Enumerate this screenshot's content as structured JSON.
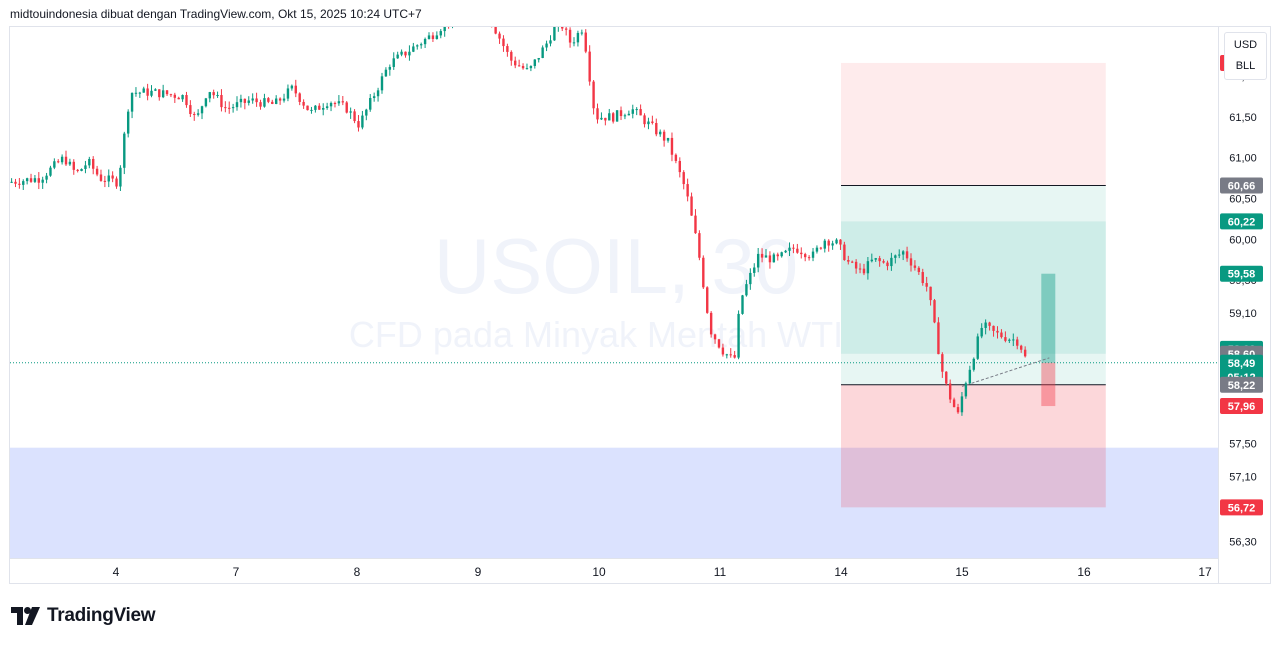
{
  "header": {
    "text": "midtouindonesia dibuat dengan TradingView.com, Okt 15, 2025 10:24 UTC+7"
  },
  "watermark": {
    "symbol": "USOIL, 30",
    "description": "CFD pada Minyak Mentah WTI"
  },
  "currency_box": {
    "currency": "USD",
    "unit": "BLL"
  },
  "logo": {
    "text": "TradingView"
  },
  "colors": {
    "up": "#089981",
    "down": "#f23645",
    "grey": "#787b86",
    "stop_zone": "#f23645",
    "target_zone": "#22ab94",
    "support_zone": "#5b7cfa"
  },
  "chart_data": {
    "type": "candlestick",
    "symbol": "USOIL",
    "timeframe": "30",
    "ylim": [
      56.1,
      62.6
    ],
    "y_ticks": [
      "62,00",
      "61,50",
      "61,00",
      "60,50",
      "60,00",
      "59,50",
      "59,10",
      "58,60",
      "58,20",
      "57,50",
      "57,10",
      "56,30"
    ],
    "y_tick_values": [
      62.0,
      61.5,
      61.0,
      60.5,
      60.0,
      59.5,
      59.1,
      58.6,
      58.2,
      57.5,
      57.1,
      56.3
    ],
    "x_ticks": [
      "4",
      "7",
      "8",
      "9",
      "10",
      "11",
      "14",
      "15",
      "16",
      "17"
    ],
    "x_tick_days": [
      0,
      1,
      2,
      3,
      4,
      5,
      6,
      7,
      8,
      9
    ],
    "xlim_days": [
      -0.87,
      9.0
    ],
    "session_path": [
      [
        -0.87,
        60.7
      ],
      [
        -0.6,
        60.75
      ],
      [
        -0.4,
        61.0
      ],
      [
        -0.3,
        60.8
      ],
      [
        -0.2,
        60.95
      ],
      [
        -0.1,
        60.75
      ],
      [
        0.05,
        60.7
      ],
      [
        0.15,
        61.8
      ],
      [
        0.35,
        61.8
      ],
      [
        0.6,
        61.75
      ],
      [
        0.7,
        61.45
      ],
      [
        0.8,
        61.85
      ],
      [
        0.95,
        61.6
      ],
      [
        1.15,
        61.7
      ],
      [
        1.35,
        61.65
      ],
      [
        1.5,
        61.85
      ],
      [
        1.65,
        61.55
      ],
      [
        1.8,
        61.7
      ],
      [
        1.95,
        61.6
      ],
      [
        2.05,
        61.4
      ],
      [
        2.15,
        61.7
      ],
      [
        2.3,
        62.15
      ],
      [
        2.5,
        62.35
      ],
      [
        2.65,
        62.5
      ],
      [
        2.8,
        62.7
      ],
      [
        2.95,
        62.8
      ],
      [
        3.05,
        62.95
      ],
      [
        3.2,
        62.5
      ],
      [
        3.3,
        62.2
      ],
      [
        3.45,
        62.05
      ],
      [
        3.6,
        62.4
      ],
      [
        3.7,
        62.7
      ],
      [
        3.8,
        62.4
      ],
      [
        3.9,
        62.6
      ],
      [
        4.0,
        61.5
      ],
      [
        4.15,
        61.5
      ],
      [
        4.3,
        61.6
      ],
      [
        4.45,
        61.4
      ],
      [
        4.6,
        61.2
      ],
      [
        4.75,
        60.6
      ],
      [
        4.85,
        59.9
      ],
      [
        4.95,
        58.9
      ],
      [
        5.05,
        58.65
      ],
      [
        5.15,
        58.5
      ],
      [
        5.2,
        59.25
      ],
      [
        5.35,
        59.8
      ],
      [
        5.5,
        59.75
      ],
      [
        5.65,
        59.9
      ],
      [
        5.8,
        59.8
      ],
      [
        5.9,
        60.0
      ],
      [
        6.0,
        59.95
      ],
      [
        6.1,
        59.7
      ],
      [
        6.2,
        59.6
      ],
      [
        6.3,
        59.75
      ],
      [
        6.4,
        59.7
      ],
      [
        6.55,
        59.85
      ],
      [
        6.65,
        59.65
      ],
      [
        6.75,
        59.4
      ],
      [
        6.82,
        58.8
      ],
      [
        6.88,
        58.3
      ],
      [
        6.95,
        58.0
      ],
      [
        7.0,
        57.85
      ],
      [
        7.05,
        58.2
      ],
      [
        7.15,
        58.7
      ],
      [
        7.2,
        58.95
      ],
      [
        7.3,
        58.85
      ],
      [
        7.4,
        58.8
      ],
      [
        7.5,
        58.75
      ],
      [
        7.55,
        58.55
      ]
    ],
    "sample_candle_count": 260,
    "last_price": 58.49,
    "countdown": "05:12",
    "horizontal_lines": [
      {
        "price": 60.66,
        "color": "grey"
      },
      {
        "price": 58.22,
        "color": "grey"
      }
    ],
    "position_tool": {
      "start_day": 6.0,
      "end_day": 8.18,
      "stop_price": 62.16,
      "entry_price": 60.66,
      "target_price": 58.22,
      "target_far_price": 56.72,
      "zone_split_prices": [
        60.22,
        58.6
      ]
    },
    "support_zone": {
      "from_price": 56.1,
      "to_price": 57.45
    },
    "projection": {
      "day": 7.65,
      "from": 58.49,
      "up_to": 59.58,
      "down_to": 57.96
    },
    "price_tags": [
      {
        "label": "62,16",
        "price": 62.16,
        "color": "down"
      },
      {
        "label": "60,66",
        "price": 60.66,
        "color": "grey"
      },
      {
        "label": "60,22",
        "price": 60.22,
        "color": "up"
      },
      {
        "label": "59,58",
        "price": 59.58,
        "color": "up"
      },
      {
        "label": "58,66",
        "price": 58.66,
        "color": "up"
      },
      {
        "label": "58,60",
        "price": 58.6,
        "color": "grey"
      },
      {
        "label": "58,49",
        "price": 58.49,
        "color": "up",
        "sub": "05:12"
      },
      {
        "label": "58,22",
        "price": 58.22,
        "color": "grey"
      },
      {
        "label": "57,96",
        "price": 57.96,
        "color": "down"
      },
      {
        "label": "56,72",
        "price": 56.72,
        "color": "down"
      }
    ]
  }
}
